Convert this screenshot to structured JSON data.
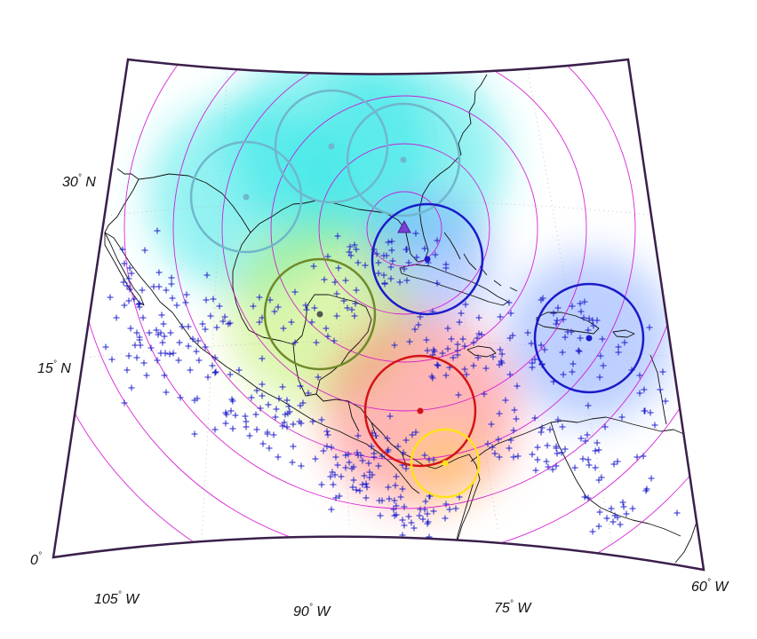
{
  "map": {
    "projection": "conic",
    "latitude_labels": [
      {
        "value": "30",
        "hemisphere": "N"
      },
      {
        "value": "15",
        "hemisphere": "N"
      },
      {
        "value": "0",
        "hemisphere": ""
      }
    ],
    "longitude_labels": [
      {
        "value": "105",
        "hemisphere": "W"
      },
      {
        "value": "90",
        "hemisphere": "W"
      },
      {
        "value": "75",
        "hemisphere": "W"
      },
      {
        "value": "60",
        "hemisphere": "W"
      }
    ],
    "frame_color": "#3a1f4a",
    "range_ring_color": "#d100d1",
    "coastline_color": "#111111",
    "graticule_color": "#b9b9b9",
    "event_marker_color": "#2222cc",
    "event_marker_symbol": "+",
    "reference_station": {
      "symbol": "triangle",
      "color": "#7a3fd0"
    },
    "clusters": [
      {
        "id": "cyan-west",
        "ring_color": "#6fb7cc",
        "fill_color": "#28e6e6",
        "center_color": "#6fb7cc"
      },
      {
        "id": "cyan-north",
        "ring_color": "#6fb7cc",
        "fill_color": "#28e6e6",
        "center_color": "#6fb7cc"
      },
      {
        "id": "cyan-east",
        "ring_color": "#6fb7cc",
        "fill_color": "#28e6e6",
        "center_color": "#6fb7cc"
      },
      {
        "id": "blue-florida",
        "ring_color": "#1b1bc8",
        "fill_color": "#7aa0ff",
        "center_color": "#1b1bc8"
      },
      {
        "id": "olive-yucatan",
        "ring_color": "#6f8a2a",
        "fill_color": "#b8ee5a",
        "center_color": "#555555"
      },
      {
        "id": "blue-caribbean",
        "ring_color": "#1b1bc8",
        "fill_color": "#7aa0ff",
        "center_color": "#1b1bc8"
      },
      {
        "id": "red-central",
        "ring_color": "#d41414",
        "fill_color": "#ff6b6b",
        "center_color": "#d41414"
      },
      {
        "id": "yellow-panama",
        "ring_color": "#ffe21a",
        "fill_color": "#ffe21a",
        "center_color": "#ffe21a"
      }
    ]
  }
}
